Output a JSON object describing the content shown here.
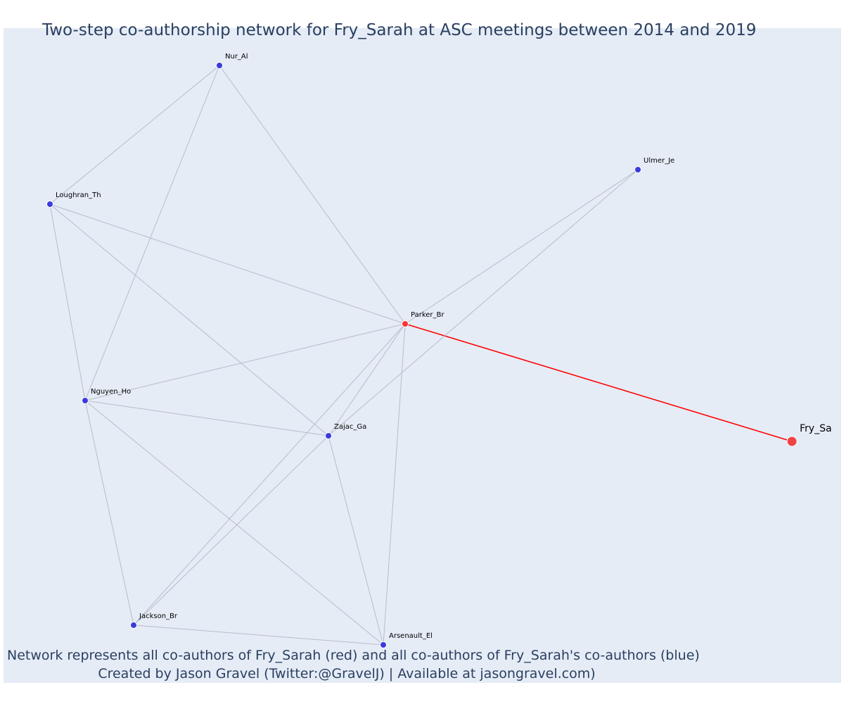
{
  "title": "Two-step co-authorship network for Fry_Sarah at ASC meetings between 2014 and 2019",
  "caption": {
    "line1": "Network represents all co-authors of Fry_Sarah (red) and all co-authors of Fry_Sarah's co-authors (blue)",
    "line2": "Created by Jason Gravel (Twitter:@GravelJ) | Available at jasongravel.com)"
  },
  "colors": {
    "background": "#e5ecf6",
    "ego_node": "#ef4444",
    "coauthor_node": "#ff3333",
    "second_step_node": "#3b3bdc",
    "edge": "#b8bcca",
    "ego_edge": "#ff0000",
    "text": "#2a3f5f"
  },
  "chart_data": {
    "type": "network",
    "nodes": [
      {
        "id": "Fry_Sa",
        "label": "Fry_Sa",
        "group": "ego"
      },
      {
        "id": "Parker_Br",
        "label": "Parker_Br",
        "group": "coauthor"
      },
      {
        "id": "Nur_Al",
        "label": "Nur_Al",
        "group": "second"
      },
      {
        "id": "Ulmer_Je",
        "label": "Ulmer_Je",
        "group": "second"
      },
      {
        "id": "Loughran_Th",
        "label": "Loughran_Th",
        "group": "second"
      },
      {
        "id": "Nguyen_Ho",
        "label": "Nguyen_Ho",
        "group": "second"
      },
      {
        "id": "Zajac_Ga",
        "label": "Zajac_Ga",
        "group": "second"
      },
      {
        "id": "Jackson_Br",
        "label": "Jackson_Br",
        "group": "second"
      },
      {
        "id": "Arsenault_El",
        "label": "Arsenault_El",
        "group": "second"
      }
    ],
    "edges": [
      [
        "Fry_Sa",
        "Parker_Br"
      ],
      [
        "Parker_Br",
        "Nur_Al"
      ],
      [
        "Parker_Br",
        "Ulmer_Je"
      ],
      [
        "Parker_Br",
        "Loughran_Th"
      ],
      [
        "Parker_Br",
        "Nguyen_Ho"
      ],
      [
        "Parker_Br",
        "Zajac_Ga"
      ],
      [
        "Parker_Br",
        "Jackson_Br"
      ],
      [
        "Parker_Br",
        "Arsenault_El"
      ],
      [
        "Nur_Al",
        "Loughran_Th"
      ],
      [
        "Nur_Al",
        "Nguyen_Ho"
      ],
      [
        "Ulmer_Je",
        "Zajac_Ga"
      ],
      [
        "Loughran_Th",
        "Nguyen_Ho"
      ],
      [
        "Loughran_Th",
        "Zajac_Ga"
      ],
      [
        "Nguyen_Ho",
        "Zajac_Ga"
      ],
      [
        "Nguyen_Ho",
        "Jackson_Br"
      ],
      [
        "Nguyen_Ho",
        "Arsenault_El"
      ],
      [
        "Zajac_Ga",
        "Jackson_Br"
      ],
      [
        "Zajac_Ga",
        "Arsenault_El"
      ],
      [
        "Jackson_Br",
        "Arsenault_El"
      ]
    ]
  }
}
